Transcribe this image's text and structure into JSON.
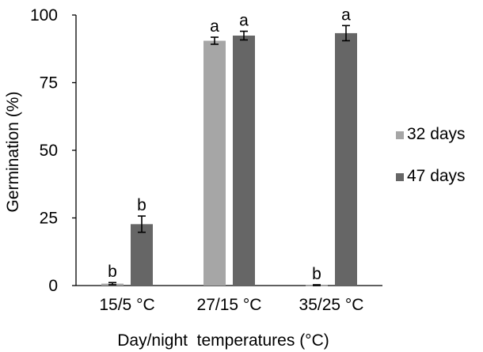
{
  "chart_data": {
    "type": "bar",
    "categories": [
      "15/5 °C",
      "27/15 °C",
      "35/25 °C"
    ],
    "series": [
      {
        "name": "32 days",
        "color": "#a6a6a6",
        "values": [
          0.7,
          90.5,
          0.1
        ],
        "errors": [
          0.4,
          1.3,
          0.2
        ],
        "letters": [
          "b",
          "a",
          "b"
        ]
      },
      {
        "name": "47 days",
        "color": "#666666",
        "values": [
          22.7,
          92.4,
          93.3
        ],
        "errors": [
          3.0,
          1.6,
          2.8
        ],
        "letters": [
          "b",
          "a",
          "a"
        ]
      }
    ],
    "yticks": [
      "0",
      "25",
      "50",
      "75",
      "100"
    ],
    "ylim": [
      0,
      100
    ],
    "ylabel": "Germination (%)",
    "xlabel": "Day/night  temperatures (°C)",
    "legend_position": "right",
    "grid": false
  }
}
